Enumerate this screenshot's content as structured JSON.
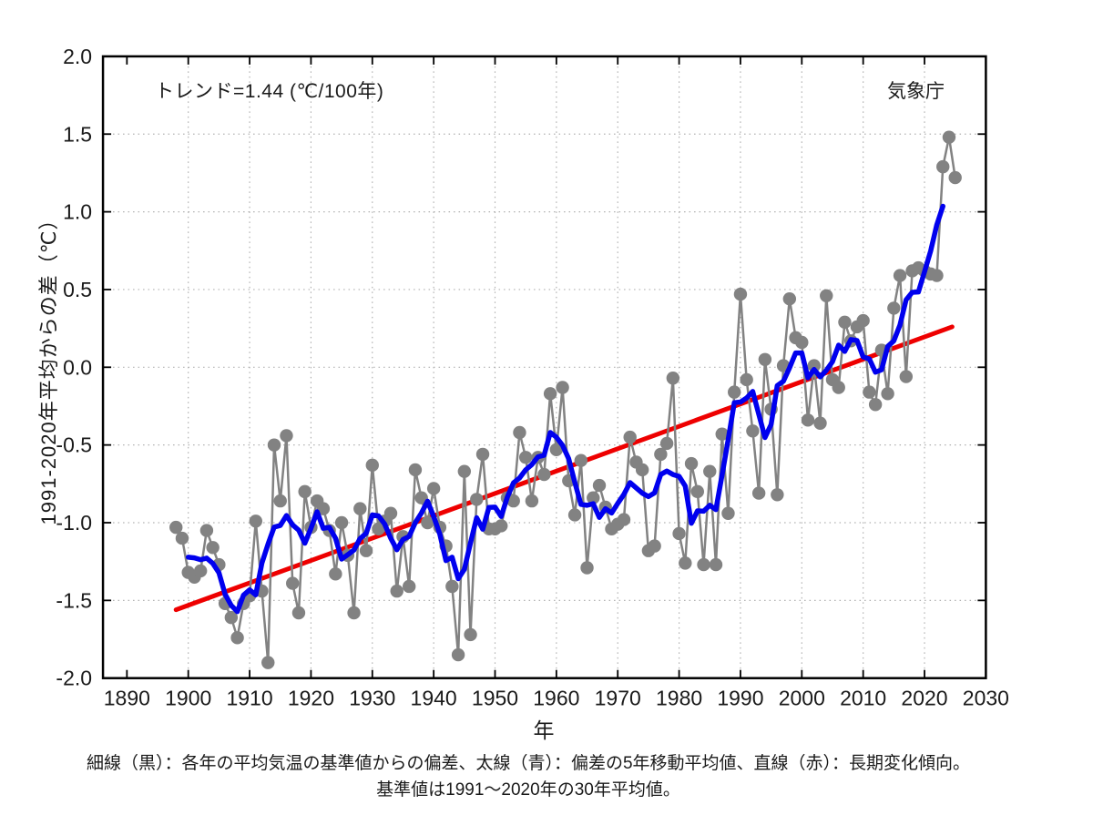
{
  "page": {
    "background": "#ffffff"
  },
  "chart_data": {
    "type": "line",
    "title_annotation": "トレンド=1.44 (℃/100年)",
    "agency_label": "気象庁",
    "xlabel": "年",
    "ylabel": "1991-2020年平均からの差（℃）",
    "caption_line1": "細線（黒）：各年の平均気温の基準値からの偏差、太線（青）：偏差の5年移動平均値、直線（赤）：長期変化傾向。",
    "caption_line2": "基準値は1991～2020年の30年平均値。",
    "xlim": [
      1886.1,
      2030
    ],
    "ylim": [
      -2.0,
      2.0
    ],
    "x_ticks": [
      1890,
      1900,
      1910,
      1920,
      1930,
      1940,
      1950,
      1960,
      1970,
      1980,
      1990,
      2000,
      2010,
      2020,
      2030
    ],
    "y_ticks": [
      -2.0,
      -1.5,
      -1.0,
      -0.5,
      0.0,
      0.5,
      1.0,
      1.5,
      2.0
    ],
    "x_gridlines": [
      1900,
      1910,
      1920,
      1930,
      1940,
      1950,
      1960,
      1970,
      1980,
      1990,
      2000,
      2010,
      2020
    ],
    "y_gridlines": [
      -1.5,
      -1.0,
      -0.5,
      0.0,
      0.5,
      1.0,
      1.5
    ],
    "grid": "dotted",
    "legend_position": "none",
    "colors": {
      "annual_series": "#828282",
      "moving_average": "#0000ee",
      "trend_line": "#ee0000",
      "axis": "#000000",
      "grid": "#b0b0b0"
    },
    "series": [
      {
        "name": "annual_anomaly",
        "label_jp": "細線（黒）：各年の平均気温の基準値からの偏差",
        "type": "line+marker",
        "start_year": 1898,
        "end_year": 2025,
        "values": [
          -1.03,
          -1.1,
          -1.32,
          -1.35,
          -1.31,
          -1.05,
          -1.16,
          -1.27,
          -1.52,
          -1.61,
          -1.74,
          -1.52,
          -1.47,
          -0.99,
          -1.44,
          -1.9,
          -0.5,
          -0.86,
          -0.44,
          -1.39,
          -1.58,
          -0.8,
          -1.03,
          -0.86,
          -0.91,
          -1.05,
          -1.33,
          -1.0,
          -1.21,
          -1.58,
          -0.91,
          -1.18,
          -0.63,
          -1.04,
          -0.99,
          -0.94,
          -1.44,
          -1.09,
          -1.41,
          -0.66,
          -0.84,
          -1.0,
          -0.78,
          -1.03,
          -1.15,
          -1.41,
          -1.85,
          -0.67,
          -1.72,
          -0.85,
          -0.56,
          -1.04,
          -1.04,
          -1.02,
          -0.84,
          -0.86,
          -0.42,
          -0.58,
          -0.86,
          -0.58,
          -0.69,
          -0.17,
          -0.53,
          -0.13,
          -0.73,
          -0.95,
          -0.6,
          -1.29,
          -0.84,
          -0.76,
          -0.9,
          -1.04,
          -1.01,
          -0.98,
          -0.45,
          -0.61,
          -0.66,
          -1.18,
          -1.15,
          -0.56,
          -0.49,
          -0.07,
          -1.07,
          -1.26,
          -0.62,
          -0.8,
          -1.27,
          -0.67,
          -1.27,
          -0.43,
          -0.94,
          -0.16,
          0.47,
          -0.08,
          -0.41,
          -0.81,
          0.05,
          -0.27,
          -0.82,
          0.01,
          0.44,
          0.19,
          0.16,
          -0.34,
          0.01,
          -0.36,
          0.46,
          -0.08,
          -0.13,
          0.29,
          0.17,
          0.26,
          0.3,
          -0.16,
          -0.24,
          0.11,
          -0.17,
          0.38,
          0.59,
          -0.06,
          0.62,
          0.64,
          0.62,
          0.6,
          0.59,
          1.29,
          1.48,
          1.22
        ]
      },
      {
        "name": "five_year_moving_average",
        "label_jp": "太線（青）：偏差の5年移動平均値",
        "type": "line",
        "derived": "centered 5-year moving average of annual_anomaly"
      },
      {
        "name": "long_term_trend",
        "label_jp": "直線（赤）：長期変化傾向",
        "type": "line",
        "trend_per_100yr": 1.44,
        "start": {
          "year": 1898.0,
          "value": -1.56
        },
        "end": {
          "year": 2024.5,
          "value": 0.26
        }
      }
    ]
  }
}
